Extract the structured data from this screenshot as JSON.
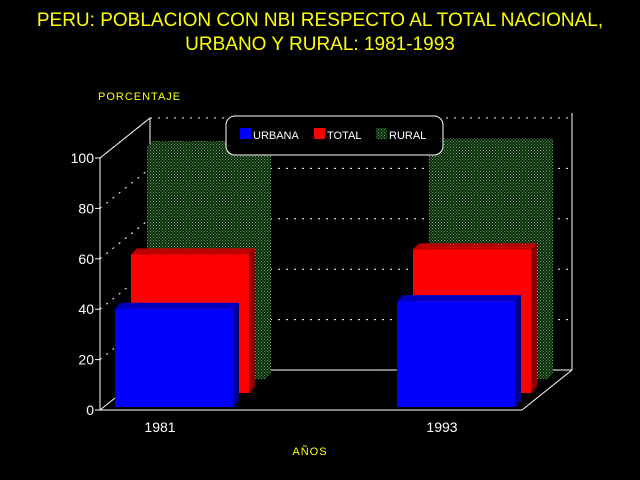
{
  "chart_data": {
    "type": "bar",
    "title": "PERU: POBLACION CON NBI RESPECTO AL TOTAL NACIONAL,",
    "subtitle": "URBANO Y RURAL: 1981-1993",
    "ylabel": "PORCENTAJE",
    "xlabel": "AÑOS",
    "categories": [
      "1981",
      "1993"
    ],
    "yticks": [
      "0",
      "20",
      "40",
      "60",
      "80",
      "100"
    ],
    "ylim": [
      0,
      100
    ],
    "series": [
      {
        "name": "URBANA",
        "values": [
          39,
          42
        ],
        "color": "#0000ff"
      },
      {
        "name": "TOTAL",
        "values": [
          55,
          57
        ],
        "color": "#ff0000"
      },
      {
        "name": "RURAL",
        "values": [
          92,
          93
        ],
        "color": "#2e6b2e"
      }
    ],
    "legend_position": "top-center",
    "grid": true,
    "three_d": true
  }
}
